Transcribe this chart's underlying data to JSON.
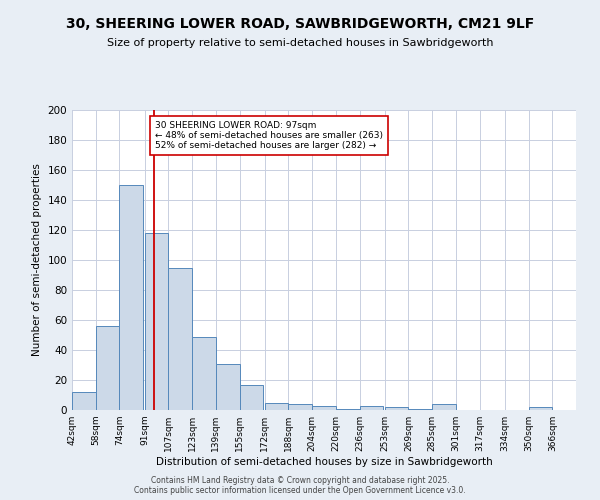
{
  "title": "30, SHEERING LOWER ROAD, SAWBRIDGEWORTH, CM21 9LF",
  "subtitle": "Size of property relative to semi-detached houses in Sawbridgeworth",
  "xlabel": "Distribution of semi-detached houses by size in Sawbridgeworth",
  "ylabel": "Number of semi-detached properties",
  "property_label": "30 SHEERING LOWER ROAD: 97sqm",
  "smaller_pct": 48,
  "smaller_count": 263,
  "larger_pct": 52,
  "larger_count": 282,
  "arrow_left": "←",
  "arrow_right": "→",
  "bin_labels": [
    "42sqm",
    "58sqm",
    "74sqm",
    "91sqm",
    "107sqm",
    "123sqm",
    "139sqm",
    "155sqm",
    "172sqm",
    "188sqm",
    "204sqm",
    "220sqm",
    "236sqm",
    "253sqm",
    "269sqm",
    "285sqm",
    "301sqm",
    "317sqm",
    "334sqm",
    "350sqm",
    "366sqm"
  ],
  "bin_edges": [
    42,
    58,
    74,
    91,
    107,
    123,
    139,
    155,
    172,
    188,
    204,
    220,
    236,
    253,
    269,
    285,
    301,
    317,
    334,
    350,
    366
  ],
  "counts": [
    12,
    56,
    150,
    118,
    95,
    49,
    31,
    17,
    5,
    4,
    3,
    1,
    3,
    2,
    1,
    4,
    0,
    0,
    0,
    2,
    0
  ],
  "bar_color": "#ccd9e8",
  "bar_edge_color": "#5588bb",
  "vline_color": "#cc0000",
  "vline_x": 97,
  "annotation_box_color": "#ffffff",
  "annotation_box_edge": "#cc0000",
  "background_color": "#e8eef5",
  "plot_bg_color": "#ffffff",
  "grid_color": "#c8cfe0",
  "ylim": [
    0,
    200
  ],
  "footer1": "Contains HM Land Registry data © Crown copyright and database right 2025.",
  "footer2": "Contains public sector information licensed under the Open Government Licence v3.0."
}
